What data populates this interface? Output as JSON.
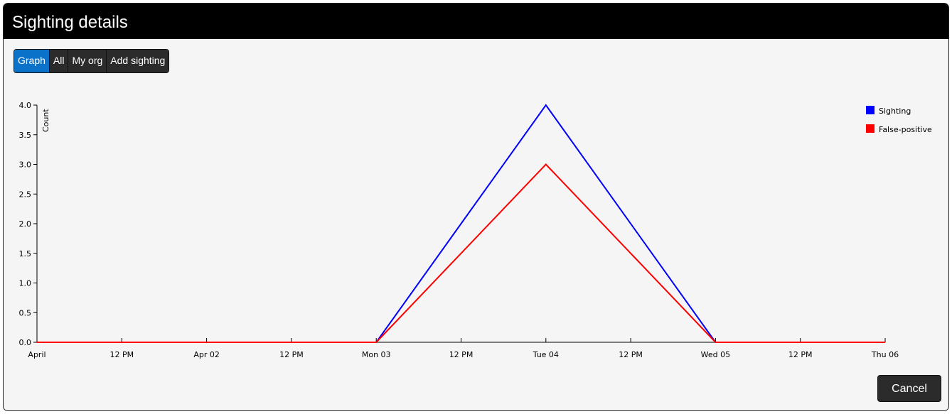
{
  "header": {
    "title": "Sighting details"
  },
  "tabs": [
    {
      "label": "Graph",
      "active": true
    },
    {
      "label": "All",
      "active": false
    },
    {
      "label": "My org",
      "active": false
    },
    {
      "label": "Add sighting",
      "active": false
    }
  ],
  "footer": {
    "cancel_label": "Cancel"
  },
  "chart_data": {
    "type": "line",
    "title": "",
    "ylabel": "Count",
    "xlabel": "",
    "ylim": [
      0,
      4.0
    ],
    "y_ticks": [
      "0.0",
      "0.5",
      "1.0",
      "1.5",
      "2.0",
      "2.5",
      "3.0",
      "3.5",
      "4.0"
    ],
    "x_ticks": [
      "April",
      "12 PM",
      "Apr 02",
      "12 PM",
      "Mon 03",
      "12 PM",
      "Tue 04",
      "12 PM",
      "Wed 05",
      "12 PM",
      "Thu 06"
    ],
    "x": [
      "2017-04-01",
      "2017-04-02",
      "2017-04-03",
      "2017-04-04",
      "2017-04-05",
      "2017-04-06"
    ],
    "series": [
      {
        "name": "Sighting",
        "color": "#0000ff",
        "values": [
          0,
          0,
          0,
          4,
          0,
          0
        ]
      },
      {
        "name": "False-positive",
        "color": "#ff0000",
        "values": [
          0,
          0,
          0,
          3,
          0,
          0
        ]
      }
    ],
    "legend": "top-right",
    "grid": false
  }
}
